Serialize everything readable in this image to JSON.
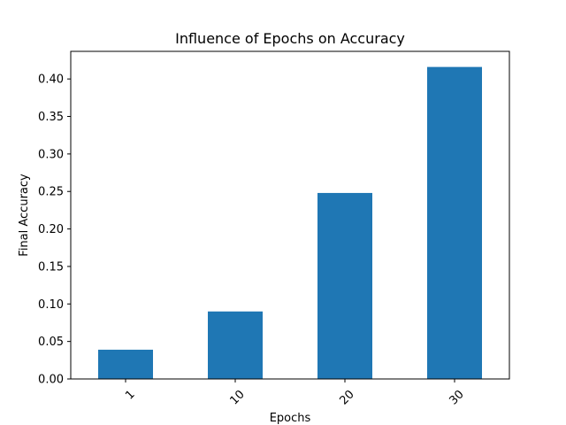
{
  "chart_data": {
    "type": "bar",
    "title": "Influence of Epochs on Accuracy",
    "xlabel": "Epochs",
    "ylabel": "Final Accuracy",
    "categories": [
      "1",
      "10",
      "20",
      "30"
    ],
    "values": [
      0.039,
      0.09,
      0.248,
      0.416
    ],
    "ylim": [
      0,
      0.4368
    ],
    "yticks": [
      "0.00",
      "0.05",
      "0.10",
      "0.15",
      "0.20",
      "0.25",
      "0.30",
      "0.35",
      "0.40"
    ],
    "ytick_values": [
      0,
      0.05,
      0.1,
      0.15,
      0.2,
      0.25,
      0.3,
      0.35,
      0.4
    ],
    "xtick_rotation": "45",
    "grid": false,
    "bar_color": "#1f77b4"
  }
}
